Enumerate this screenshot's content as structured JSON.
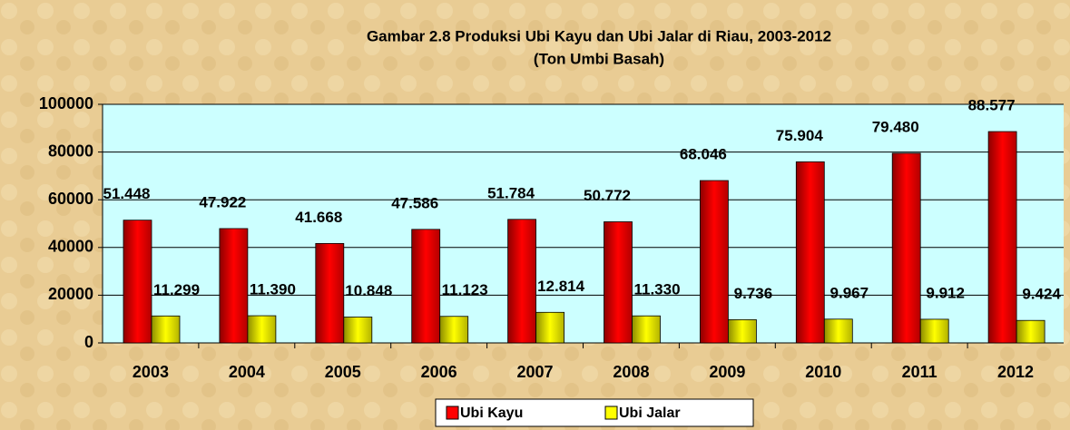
{
  "chart_data": {
    "type": "bar",
    "title": "Gambar 2.8 Produksi Ubi Kayu dan Ubi Jalar di Riau, 2003-2012",
    "subtitle": "(Ton Umbi Basah)",
    "categories": [
      "2003",
      "2004",
      "2005",
      "2006",
      "2007",
      "2008",
      "2009",
      "2010",
      "2011",
      "2012"
    ],
    "series": [
      {
        "name": "Ubi Kayu",
        "color": "#ff0000",
        "values": [
          51448,
          47922,
          41668,
          47586,
          51784,
          50772,
          68046,
          75904,
          79480,
          88577
        ],
        "value_labels": [
          "51.448",
          "47.922",
          "41.668",
          "47.586",
          "51.784",
          "50.772",
          "68.046",
          "75.904",
          "79.480",
          "88.577"
        ]
      },
      {
        "name": "Ubi Jalar",
        "color": "#ffff00",
        "values": [
          11299,
          11390,
          10848,
          11123,
          12814,
          11330,
          9736,
          9967,
          9912,
          9424
        ],
        "value_labels": [
          "11.299",
          "11.390",
          "10.848",
          "11.123",
          "12.814",
          "11.330",
          "9.736",
          "9.967",
          "9.912",
          "9.424"
        ]
      }
    ],
    "ylim": [
      0,
      100000
    ],
    "yticks": [
      0,
      20000,
      40000,
      60000,
      80000,
      100000
    ],
    "grid": true
  }
}
